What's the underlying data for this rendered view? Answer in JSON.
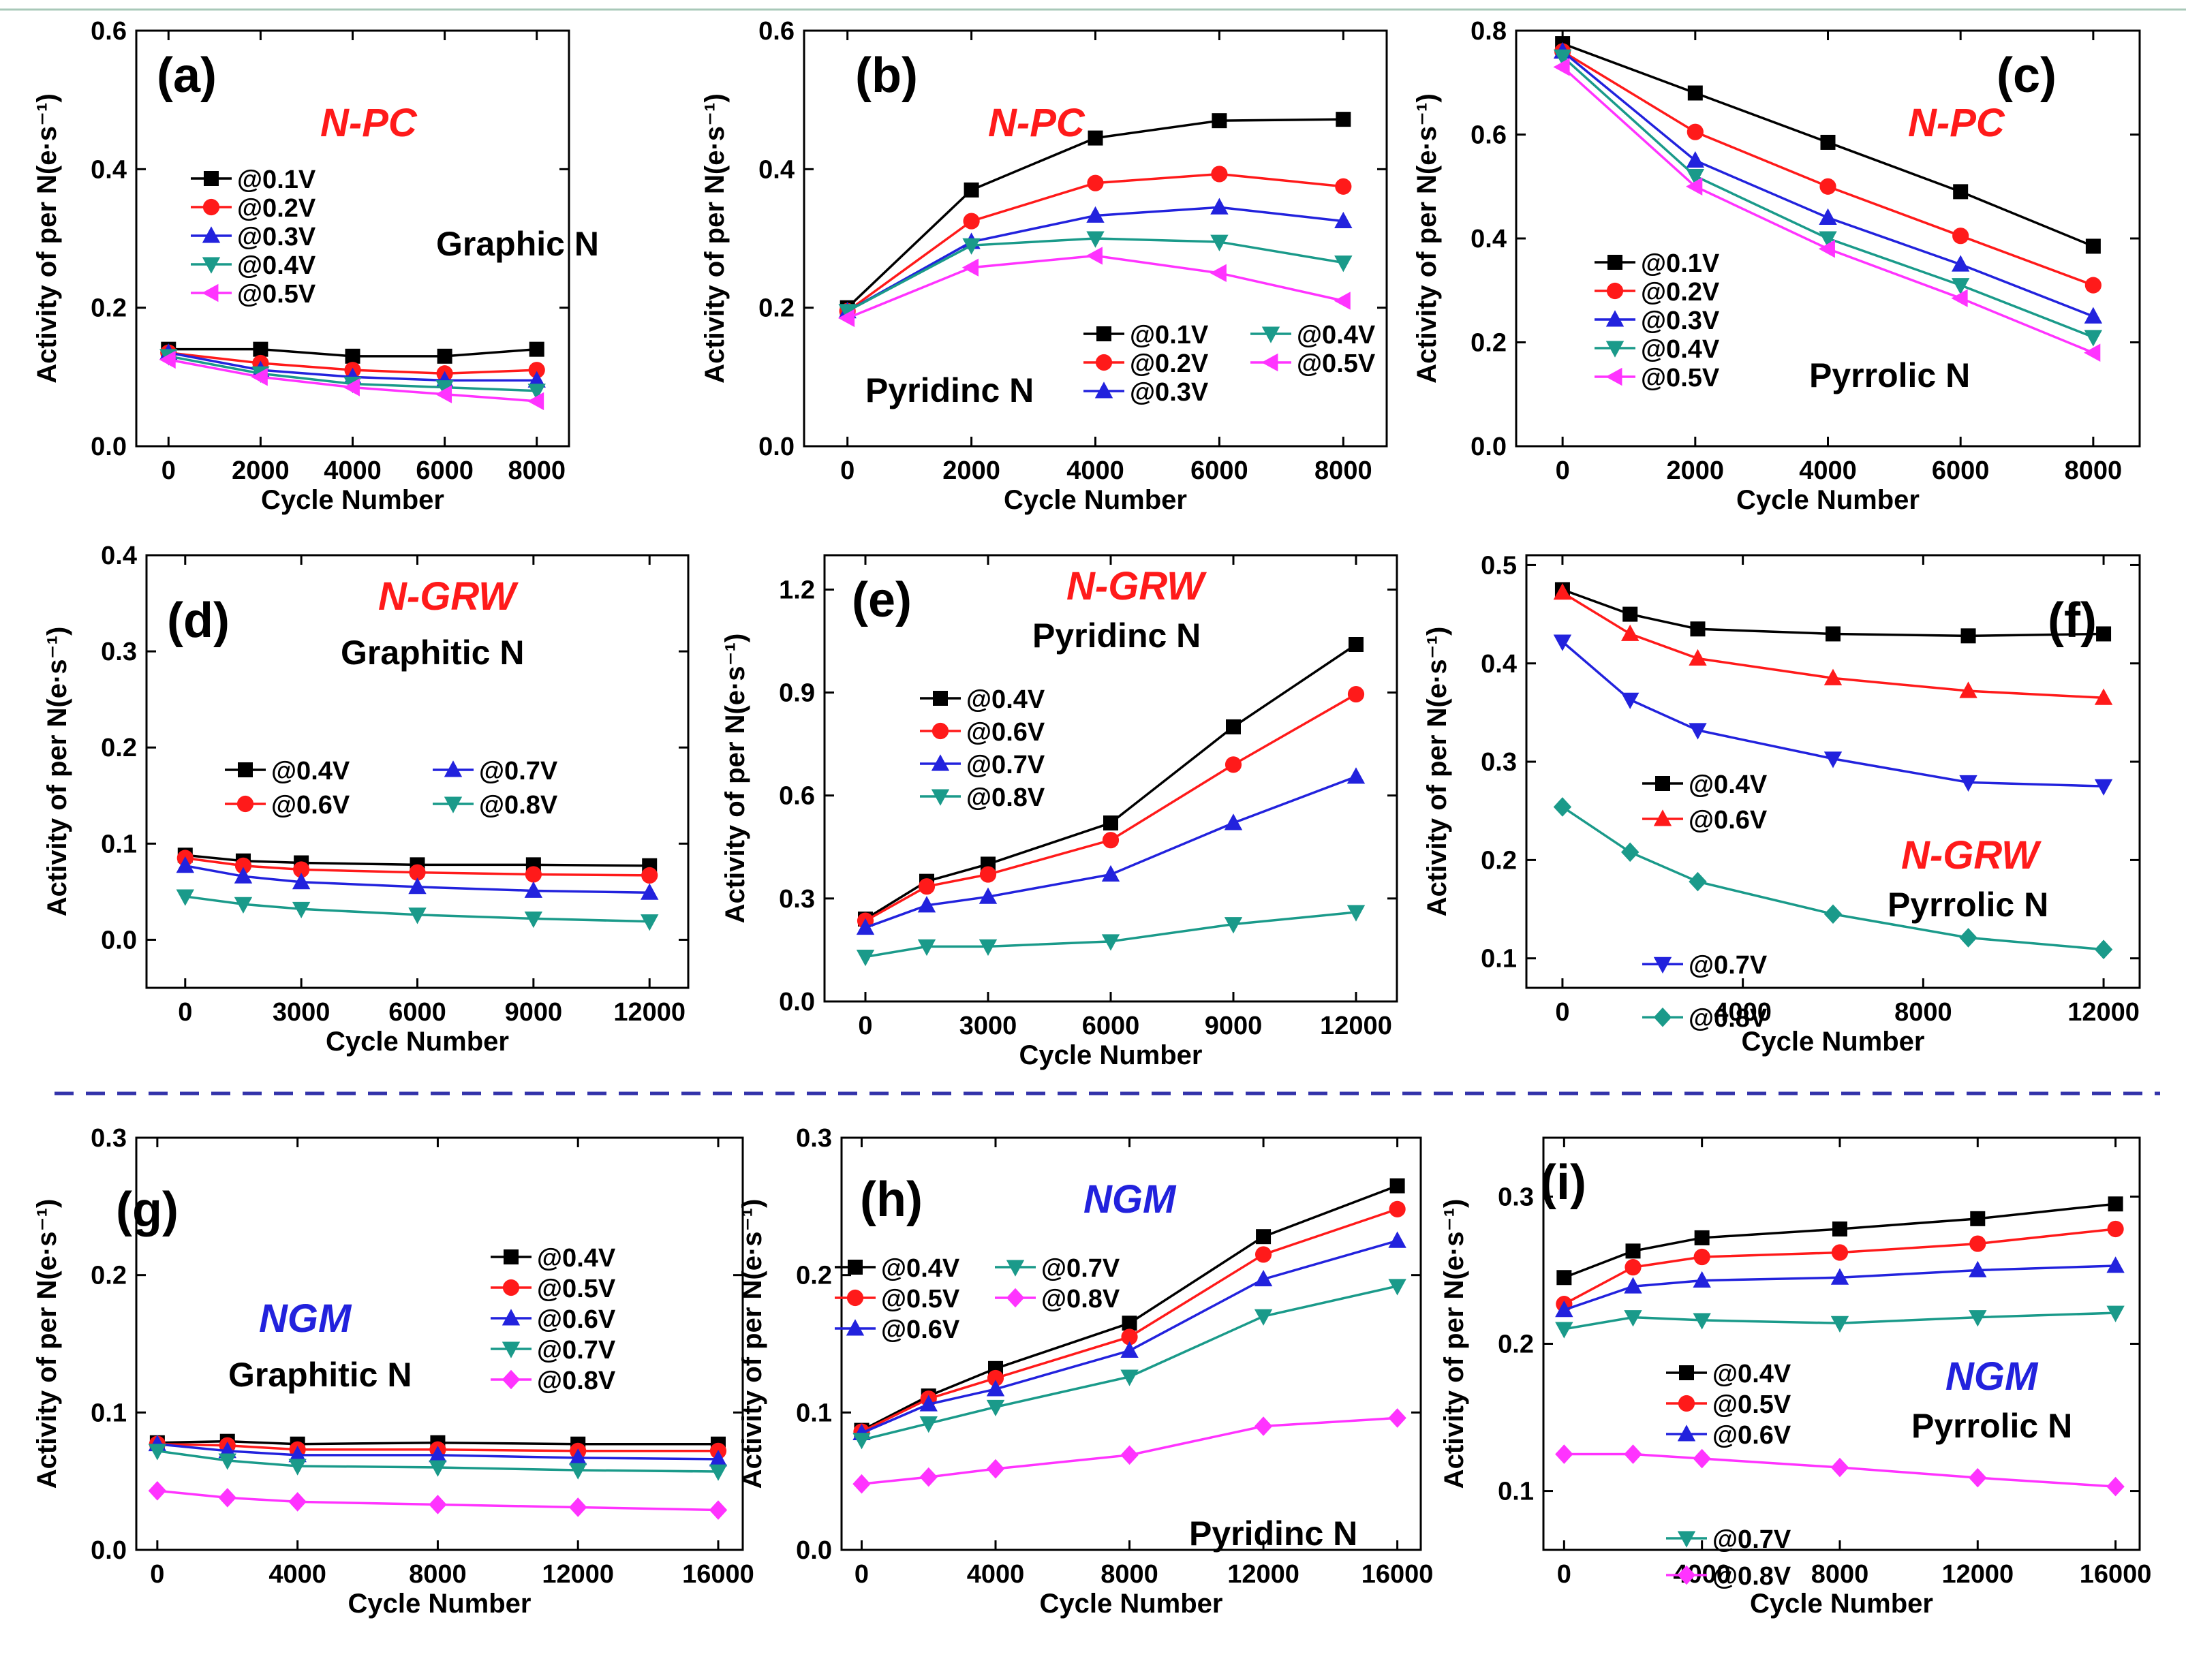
{
  "colors": {
    "black": "#000000",
    "red": "#ff1a1a",
    "blue": "#2222dd",
    "teal": "#1a9a8a",
    "magenta": "#ff33ff",
    "divider": "#3333aa"
  },
  "chart_data": [
    {
      "id": "a",
      "panel_label": "(a)",
      "type": "line",
      "sample": "N-PC",
      "sample_color": "red",
      "n_type": "Graphic N",
      "xlabel": "Cycle Number",
      "ylabel": "Activity of per N(e·s⁻¹)",
      "xlim": [
        -700,
        8700
      ],
      "ylim": [
        0,
        0.6
      ],
      "xticks": [
        0,
        2000,
        4000,
        6000,
        8000
      ],
      "yticks": [
        0.0,
        0.2,
        0.4,
        0.6
      ],
      "ytick_labels": [
        "0.0",
        "0.2",
        "0.4",
        "0.6"
      ],
      "x": [
        0,
        2000,
        4000,
        6000,
        8000
      ],
      "legend_cols": 1,
      "series": [
        {
          "name": "@0.1V",
          "marker": "square",
          "color": "black",
          "values": [
            0.14,
            0.14,
            0.13,
            0.13,
            0.14
          ]
        },
        {
          "name": "@0.2V",
          "marker": "circle",
          "color": "red",
          "values": [
            0.135,
            0.12,
            0.11,
            0.105,
            0.11
          ]
        },
        {
          "name": "@0.3V",
          "marker": "triangle-up",
          "color": "blue",
          "values": [
            0.135,
            0.11,
            0.1,
            0.095,
            0.095
          ]
        },
        {
          "name": "@0.4V",
          "marker": "triangle-down",
          "color": "teal",
          "values": [
            0.13,
            0.105,
            0.09,
            0.085,
            0.08
          ]
        },
        {
          "name": "@0.5V",
          "marker": "triangle-left",
          "color": "magenta",
          "values": [
            0.125,
            0.1,
            0.085,
            0.075,
            0.065
          ]
        }
      ]
    },
    {
      "id": "b",
      "panel_label": "(b)",
      "type": "line",
      "sample": "N-PC",
      "sample_color": "red",
      "n_type": "Pyridinc N",
      "xlabel": "Cycle Number",
      "ylabel": "Activity of per N(e·s⁻¹)",
      "xlim": [
        -700,
        8700
      ],
      "ylim": [
        0,
        0.6
      ],
      "xticks": [
        0,
        2000,
        4000,
        6000,
        8000
      ],
      "yticks": [
        0.0,
        0.2,
        0.4,
        0.6
      ],
      "ytick_labels": [
        "0.0",
        "0.2",
        "0.4",
        "0.6"
      ],
      "x": [
        0,
        2000,
        4000,
        6000,
        8000
      ],
      "legend_cols": 2,
      "series": [
        {
          "name": "@0.1V",
          "marker": "square",
          "color": "black",
          "values": [
            0.2,
            0.37,
            0.445,
            0.47,
            0.472
          ]
        },
        {
          "name": "@0.2V",
          "marker": "circle",
          "color": "red",
          "values": [
            0.195,
            0.325,
            0.38,
            0.393,
            0.375
          ]
        },
        {
          "name": "@0.3V",
          "marker": "triangle-up",
          "color": "blue",
          "values": [
            0.195,
            0.295,
            0.333,
            0.345,
            0.325
          ]
        },
        {
          "name": "@0.4V",
          "marker": "triangle-down",
          "color": "teal",
          "values": [
            0.195,
            0.29,
            0.3,
            0.295,
            0.265
          ]
        },
        {
          "name": "@0.5V",
          "marker": "triangle-left",
          "color": "magenta",
          "values": [
            0.185,
            0.258,
            0.275,
            0.25,
            0.21
          ]
        }
      ]
    },
    {
      "id": "c",
      "panel_label": "(c)",
      "type": "line",
      "sample": "N-PC",
      "sample_color": "red",
      "n_type": "Pyrrolic N",
      "xlabel": "Cycle Number",
      "ylabel": "Activity of per N(e·s⁻¹)",
      "xlim": [
        -700,
        8700
      ],
      "ylim": [
        0,
        0.8
      ],
      "xticks": [
        0,
        2000,
        4000,
        6000,
        8000
      ],
      "yticks": [
        0.0,
        0.2,
        0.4,
        0.6,
        0.8
      ],
      "ytick_labels": [
        "0.0",
        "0.2",
        "0.4",
        "0.6",
        "0.8"
      ],
      "x": [
        0,
        2000,
        4000,
        6000,
        8000
      ],
      "legend_cols": 1,
      "series": [
        {
          "name": "@0.1V",
          "marker": "square",
          "color": "black",
          "values": [
            0.775,
            0.68,
            0.585,
            0.49,
            0.385
          ]
        },
        {
          "name": "@0.2V",
          "marker": "circle",
          "color": "red",
          "values": [
            0.76,
            0.605,
            0.5,
            0.405,
            0.31
          ]
        },
        {
          "name": "@0.3V",
          "marker": "triangle-up",
          "color": "blue",
          "values": [
            0.76,
            0.55,
            0.44,
            0.35,
            0.25
          ]
        },
        {
          "name": "@0.4V",
          "marker": "triangle-down",
          "color": "teal",
          "values": [
            0.75,
            0.52,
            0.4,
            0.31,
            0.21
          ]
        },
        {
          "name": "@0.5V",
          "marker": "triangle-left",
          "color": "magenta",
          "values": [
            0.73,
            0.5,
            0.38,
            0.285,
            0.18
          ]
        }
      ]
    },
    {
      "id": "d",
      "panel_label": "(d)",
      "type": "line",
      "sample": "N-GRW",
      "sample_color": "red",
      "n_type": "Graphitic N",
      "xlabel": "Cycle Number",
      "ylabel": "Activity of per N(e·s⁻¹)",
      "xlim": [
        -1000,
        13000
      ],
      "ylim": [
        -0.05,
        0.4
      ],
      "xticks": [
        0,
        3000,
        6000,
        9000,
        12000
      ],
      "yticks": [
        0.0,
        0.1,
        0.2,
        0.3,
        0.4
      ],
      "ytick_labels": [
        "0.0",
        "0.1",
        "0.2",
        "0.3",
        "0.4"
      ],
      "x": [
        0,
        1500,
        3000,
        6000,
        9000,
        12000
      ],
      "legend_cols": 2,
      "series": [
        {
          "name": "@0.4V",
          "marker": "square",
          "color": "black",
          "values": [
            0.088,
            0.082,
            0.08,
            0.078,
            0.078,
            0.077
          ]
        },
        {
          "name": "@0.6V",
          "marker": "circle",
          "color": "red",
          "values": [
            0.085,
            0.077,
            0.073,
            0.07,
            0.068,
            0.067
          ]
        },
        {
          "name": "@0.7V",
          "marker": "triangle-up",
          "color": "blue",
          "values": [
            0.077,
            0.066,
            0.06,
            0.055,
            0.051,
            0.049
          ]
        },
        {
          "name": "@0.8V",
          "marker": "triangle-down",
          "color": "teal",
          "values": [
            0.045,
            0.037,
            0.032,
            0.026,
            0.022,
            0.019
          ]
        }
      ]
    },
    {
      "id": "e",
      "panel_label": "(e)",
      "type": "line",
      "sample": "N-GRW",
      "sample_color": "red",
      "n_type": "Pyridinc N",
      "xlabel": "Cycle Number",
      "ylabel": "Activity of per N(e·s⁻¹)",
      "xlim": [
        -1000,
        13000
      ],
      "ylim": [
        0,
        1.3
      ],
      "xticks": [
        0,
        3000,
        6000,
        9000,
        12000
      ],
      "yticks": [
        0.0,
        0.3,
        0.6,
        0.9,
        1.2
      ],
      "ytick_labels": [
        "0.0",
        "0.3",
        "0.6",
        "0.9",
        "1.2"
      ],
      "x": [
        0,
        1500,
        3000,
        6000,
        9000,
        12000
      ],
      "legend_cols": 1,
      "series": [
        {
          "name": "@0.4V",
          "marker": "square",
          "color": "black",
          "values": [
            0.24,
            0.35,
            0.4,
            0.52,
            0.8,
            1.04
          ]
        },
        {
          "name": "@0.6V",
          "marker": "circle",
          "color": "red",
          "values": [
            0.235,
            0.335,
            0.37,
            0.47,
            0.69,
            0.895
          ]
        },
        {
          "name": "@0.7V",
          "marker": "triangle-up",
          "color": "blue",
          "values": [
            0.215,
            0.28,
            0.305,
            0.37,
            0.52,
            0.655
          ]
        },
        {
          "name": "@0.8V",
          "marker": "triangle-down",
          "color": "teal",
          "values": [
            0.13,
            0.16,
            0.16,
            0.175,
            0.225,
            0.26
          ]
        }
      ]
    },
    {
      "id": "f",
      "panel_label": "(f)",
      "type": "line",
      "sample": "N-GRW",
      "sample_color": "red",
      "n_type": "Pyrrolic N",
      "xlabel": "Cycle Number",
      "ylabel": "Activity of per N(e·s⁻¹)",
      "xlim": [
        -800,
        12800
      ],
      "ylim": [
        0.07,
        0.51
      ],
      "xticks": [
        0,
        4000,
        8000,
        12000
      ],
      "yticks": [
        0.1,
        0.2,
        0.3,
        0.4,
        0.5
      ],
      "ytick_labels": [
        "0.1",
        "0.2",
        "0.3",
        "0.4",
        "0.5"
      ],
      "x": [
        0,
        1500,
        3000,
        6000,
        9000,
        12000
      ],
      "legend_cols": 1,
      "series": [
        {
          "name": "@0.4V",
          "marker": "square",
          "color": "black",
          "values": [
            0.475,
            0.45,
            0.435,
            0.43,
            0.428,
            0.43
          ]
        },
        {
          "name": "@0.6V",
          "marker": "triangle-up",
          "color": "red",
          "values": [
            0.472,
            0.43,
            0.405,
            0.385,
            0.372,
            0.365
          ]
        },
        {
          "name": "@0.7V",
          "marker": "triangle-down",
          "color": "blue",
          "values": [
            0.422,
            0.363,
            0.332,
            0.303,
            0.279,
            0.275
          ]
        },
        {
          "name": "@0.8V",
          "marker": "diamond",
          "color": "teal",
          "values": [
            0.254,
            0.208,
            0.178,
            0.145,
            0.121,
            0.109
          ]
        }
      ]
    },
    {
      "id": "g",
      "panel_label": "(g)",
      "type": "line",
      "sample": "NGM",
      "sample_color": "blue",
      "n_type": "Graphitic N",
      "xlabel": "Cycle Number",
      "ylabel": "Activity of per N(e·s⁻¹)",
      "xlim": [
        -600,
        16700
      ],
      "ylim": [
        0,
        0.3
      ],
      "xticks": [
        0,
        4000,
        8000,
        12000,
        16000
      ],
      "yticks": [
        0.0,
        0.1,
        0.2,
        0.3
      ],
      "ytick_labels": [
        "0.0",
        "0.1",
        "0.2",
        "0.3"
      ],
      "x": [
        0,
        2000,
        4000,
        8000,
        12000,
        16000
      ],
      "legend_cols": 1,
      "series": [
        {
          "name": "@0.4V",
          "marker": "square",
          "color": "black",
          "values": [
            0.078,
            0.079,
            0.077,
            0.078,
            0.077,
            0.077
          ]
        },
        {
          "name": "@0.5V",
          "marker": "circle",
          "color": "red",
          "values": [
            0.077,
            0.076,
            0.073,
            0.073,
            0.072,
            0.072
          ]
        },
        {
          "name": "@0.6V",
          "marker": "triangle-up",
          "color": "blue",
          "values": [
            0.077,
            0.072,
            0.069,
            0.069,
            0.067,
            0.066
          ]
        },
        {
          "name": "@0.7V",
          "marker": "triangle-down",
          "color": "teal",
          "values": [
            0.072,
            0.065,
            0.061,
            0.06,
            0.058,
            0.057
          ]
        },
        {
          "name": "@0.8V",
          "marker": "diamond",
          "color": "magenta",
          "values": [
            0.043,
            0.038,
            0.035,
            0.033,
            0.031,
            0.029
          ]
        }
      ]
    },
    {
      "id": "h",
      "panel_label": "(h)",
      "type": "line",
      "sample": "NGM",
      "sample_color": "blue",
      "n_type": "Pyridinc N",
      "xlabel": "Cycle Number",
      "ylabel": "Activity of per N(e·s⁻¹)",
      "xlim": [
        -600,
        16700
      ],
      "ylim": [
        0,
        0.3
      ],
      "xticks": [
        0,
        4000,
        8000,
        12000,
        16000
      ],
      "yticks": [
        0.0,
        0.1,
        0.2,
        0.3
      ],
      "ytick_labels": [
        "0.0",
        "0.1",
        "0.2",
        "0.3"
      ],
      "x": [
        0,
        2000,
        4000,
        8000,
        12000,
        16000
      ],
      "legend_cols": 2,
      "series": [
        {
          "name": "@0.4V",
          "marker": "square",
          "color": "black",
          "values": [
            0.087,
            0.112,
            0.132,
            0.165,
            0.228,
            0.265
          ]
        },
        {
          "name": "@0.5V",
          "marker": "circle",
          "color": "red",
          "values": [
            0.086,
            0.11,
            0.125,
            0.155,
            0.215,
            0.248
          ]
        },
        {
          "name": "@0.6V",
          "marker": "triangle-up",
          "color": "blue",
          "values": [
            0.085,
            0.106,
            0.117,
            0.145,
            0.197,
            0.225
          ]
        },
        {
          "name": "@0.7V",
          "marker": "triangle-down",
          "color": "teal",
          "values": [
            0.08,
            0.092,
            0.104,
            0.126,
            0.17,
            0.192
          ]
        },
        {
          "name": "@0.8V",
          "marker": "diamond",
          "color": "magenta",
          "values": [
            0.048,
            0.053,
            0.059,
            0.069,
            0.09,
            0.096
          ]
        }
      ]
    },
    {
      "id": "i",
      "panel_label": "(i)",
      "type": "line",
      "sample": "NGM",
      "sample_color": "blue",
      "n_type": "Pyrrolic N",
      "xlabel": "Cycle Number",
      "ylabel": "Activity of per N(e·s⁻¹)",
      "xlim": [
        -600,
        16700
      ],
      "ylim": [
        0.06,
        0.34
      ],
      "xticks": [
        0,
        4000,
        8000,
        12000,
        16000
      ],
      "yticks": [
        0.1,
        0.2,
        0.3
      ],
      "ytick_labels": [
        "0.1",
        "0.2",
        "0.3"
      ],
      "x": [
        0,
        2000,
        4000,
        8000,
        12000,
        16000
      ],
      "legend_cols": 1,
      "series": [
        {
          "name": "@0.4V",
          "marker": "square",
          "color": "black",
          "values": [
            0.245,
            0.263,
            0.272,
            0.278,
            0.285,
            0.295
          ]
        },
        {
          "name": "@0.5V",
          "marker": "circle",
          "color": "red",
          "values": [
            0.227,
            0.252,
            0.259,
            0.262,
            0.268,
            0.278
          ]
        },
        {
          "name": "@0.6V",
          "marker": "triangle-up",
          "color": "blue",
          "values": [
            0.223,
            0.239,
            0.243,
            0.245,
            0.25,
            0.253
          ]
        },
        {
          "name": "@0.7V",
          "marker": "triangle-down",
          "color": "teal",
          "values": [
            0.21,
            0.218,
            0.216,
            0.214,
            0.218,
            0.221
          ]
        },
        {
          "name": "@0.8V",
          "marker": "diamond",
          "color": "magenta",
          "values": [
            0.125,
            0.125,
            0.122,
            0.116,
            0.109,
            0.103
          ]
        }
      ]
    }
  ]
}
